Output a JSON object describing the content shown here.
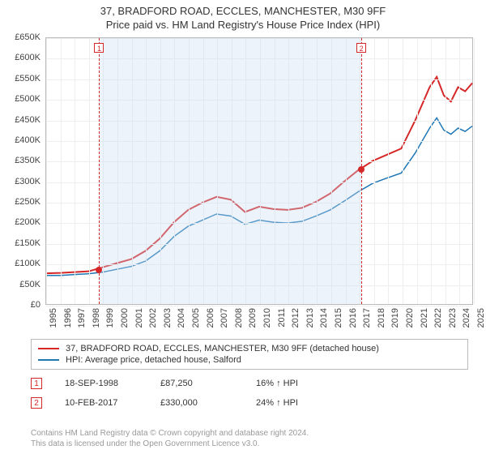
{
  "title": "37, BRADFORD ROAD, ECCLES, MANCHESTER, M30 9FF",
  "subtitle": "Price paid vs. HM Land Registry's House Price Index (HPI)",
  "chart": {
    "type": "line",
    "background_color": "#ffffff",
    "grid_color": "#eeeeee",
    "border_color": "#bbbbbb",
    "x": {
      "min": 1995,
      "max": 2025,
      "ticks": [
        1995,
        1996,
        1997,
        1998,
        1999,
        2000,
        2001,
        2002,
        2003,
        2004,
        2005,
        2006,
        2007,
        2008,
        2009,
        2010,
        2011,
        2012,
        2013,
        2014,
        2015,
        2016,
        2017,
        2018,
        2019,
        2020,
        2021,
        2022,
        2023,
        2024,
        2025
      ],
      "tick_labels": [
        "1995",
        "1996",
        "1997",
        "1998",
        "1999",
        "2000",
        "2001",
        "2002",
        "2003",
        "2004",
        "2005",
        "2006",
        "2007",
        "2008",
        "2009",
        "2010",
        "2011",
        "2012",
        "2013",
        "2014",
        "2015",
        "2016",
        "2017",
        "2018",
        "2019",
        "2020",
        "2021",
        "2022",
        "2023",
        "2024",
        "2025"
      ],
      "label_fontsize": 11
    },
    "y": {
      "min": 0,
      "max": 650000,
      "ticks": [
        0,
        50000,
        100000,
        150000,
        200000,
        250000,
        300000,
        350000,
        400000,
        450000,
        500000,
        550000,
        600000,
        650000
      ],
      "tick_labels": [
        "£0",
        "£50K",
        "£100K",
        "£150K",
        "£200K",
        "£250K",
        "£300K",
        "£350K",
        "£400K",
        "£450K",
        "£500K",
        "£550K",
        "£600K",
        "£650K"
      ],
      "label_fontsize": 11
    },
    "shade": {
      "from": 1998.72,
      "to": 2017.11,
      "color": "rgba(200,220,240,0.35)"
    },
    "vlines": [
      {
        "x": 1998.72,
        "color": "#d62728",
        "dash": true,
        "marker_label": "1"
      },
      {
        "x": 2017.11,
        "color": "#d62728",
        "dash": true,
        "marker_label": "2"
      }
    ],
    "series": [
      {
        "name": "price_paid",
        "color": "#d62728",
        "width": 2,
        "legend": "37, BRADFORD ROAD, ECCLES, MANCHESTER, M30 9FF (detached house)",
        "points": [
          [
            1995,
            75000
          ],
          [
            1996,
            76000
          ],
          [
            1997,
            78000
          ],
          [
            1998,
            80000
          ],
          [
            1998.72,
            87250
          ],
          [
            1999,
            90000
          ],
          [
            2000,
            100000
          ],
          [
            2001,
            110000
          ],
          [
            2002,
            130000
          ],
          [
            2003,
            160000
          ],
          [
            2004,
            200000
          ],
          [
            2005,
            230000
          ],
          [
            2006,
            248000
          ],
          [
            2007,
            262000
          ],
          [
            2008,
            255000
          ],
          [
            2009,
            225000
          ],
          [
            2010,
            238000
          ],
          [
            2011,
            232000
          ],
          [
            2012,
            230000
          ],
          [
            2013,
            235000
          ],
          [
            2014,
            250000
          ],
          [
            2015,
            270000
          ],
          [
            2016,
            300000
          ],
          [
            2017,
            328000
          ],
          [
            2017.11,
            330000
          ],
          [
            2018,
            350000
          ],
          [
            2019,
            365000
          ],
          [
            2020,
            380000
          ],
          [
            2021,
            450000
          ],
          [
            2022,
            530000
          ],
          [
            2022.5,
            555000
          ],
          [
            2023,
            510000
          ],
          [
            2023.5,
            495000
          ],
          [
            2024,
            530000
          ],
          [
            2024.5,
            520000
          ],
          [
            2025,
            540000
          ]
        ],
        "markers": [
          {
            "x": 1998.72,
            "y": 87250
          },
          {
            "x": 2017.11,
            "y": 330000
          }
        ]
      },
      {
        "name": "hpi",
        "color": "#1f77b4",
        "width": 1.5,
        "legend": "HPI: Average price, detached house, Salford",
        "points": [
          [
            1995,
            70000
          ],
          [
            1996,
            70000
          ],
          [
            1997,
            72000
          ],
          [
            1998,
            74000
          ],
          [
            1999,
            78000
          ],
          [
            2000,
            85000
          ],
          [
            2001,
            92000
          ],
          [
            2002,
            105000
          ],
          [
            2003,
            130000
          ],
          [
            2004,
            165000
          ],
          [
            2005,
            190000
          ],
          [
            2006,
            205000
          ],
          [
            2007,
            220000
          ],
          [
            2008,
            215000
          ],
          [
            2009,
            195000
          ],
          [
            2010,
            205000
          ],
          [
            2011,
            200000
          ],
          [
            2012,
            198000
          ],
          [
            2013,
            202000
          ],
          [
            2014,
            215000
          ],
          [
            2015,
            230000
          ],
          [
            2016,
            252000
          ],
          [
            2017,
            275000
          ],
          [
            2018,
            295000
          ],
          [
            2019,
            308000
          ],
          [
            2020,
            320000
          ],
          [
            2021,
            370000
          ],
          [
            2022,
            430000
          ],
          [
            2022.5,
            455000
          ],
          [
            2023,
            425000
          ],
          [
            2023.5,
            415000
          ],
          [
            2024,
            430000
          ],
          [
            2024.5,
            422000
          ],
          [
            2025,
            435000
          ]
        ]
      }
    ]
  },
  "legend": {
    "series1_label": "37, BRADFORD ROAD, ECCLES, MANCHESTER, M30 9FF (detached house)",
    "series2_label": "HPI: Average price, detached house, Salford"
  },
  "annotations": [
    {
      "num": "1",
      "date": "18-SEP-1998",
      "price": "£87,250",
      "pct": "16% ↑ HPI"
    },
    {
      "num": "2",
      "date": "10-FEB-2017",
      "price": "£330,000",
      "pct": "24% ↑ HPI"
    }
  ],
  "footer": {
    "line1": "Contains HM Land Registry data © Crown copyright and database right 2024.",
    "line2": "This data is licensed under the Open Government Licence v3.0."
  }
}
